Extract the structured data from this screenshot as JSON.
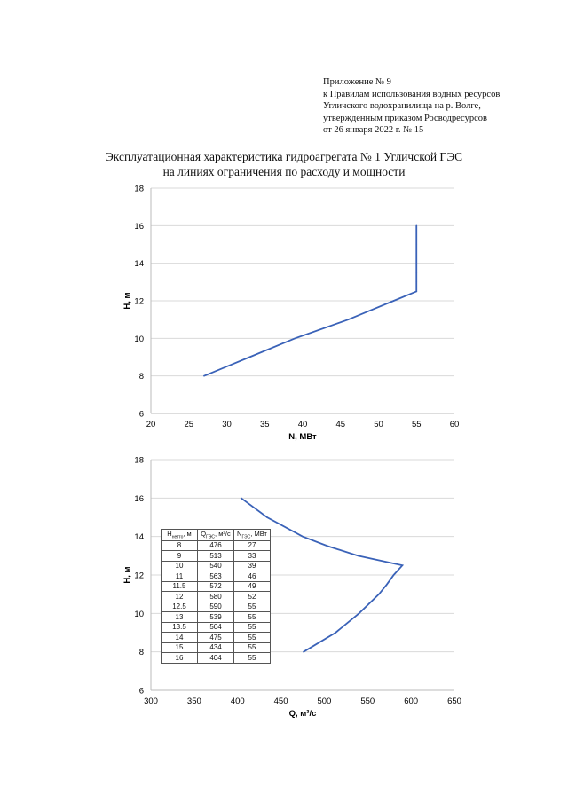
{
  "appendix": {
    "lines": [
      "Приложение № 9",
      "к Правилам использования водных ресурсов",
      "Угличского водохранилища на р. Волге,",
      "утвержденным приказом Росводресурсов",
      "от 26 января 2022 г. № 15"
    ]
  },
  "title": {
    "line1": "Эксплуатационная характеристика гидроагрегата № 1 Угличской ГЭС",
    "line2": "на линиях ограничения по расходу и мощности"
  },
  "table": {
    "headers": [
      {
        "main": "H",
        "sub": "нетто",
        "unit": ", м"
      },
      {
        "main": "Q",
        "sub": "ГЭС",
        "unit": ", м³/с"
      },
      {
        "main": "N",
        "sub": "ГЭС",
        "unit": ", МВт"
      }
    ],
    "rows": [
      [
        "8",
        "476",
        "27"
      ],
      [
        "9",
        "513",
        "33"
      ],
      [
        "10",
        "540",
        "39"
      ],
      [
        "11",
        "563",
        "46"
      ],
      [
        "11.5",
        "572",
        "49"
      ],
      [
        "12",
        "580",
        "52"
      ],
      [
        "12.5",
        "590",
        "55"
      ],
      [
        "13",
        "539",
        "55"
      ],
      [
        "13.5",
        "504",
        "55"
      ],
      [
        "14",
        "475",
        "55"
      ],
      [
        "15",
        "434",
        "55"
      ],
      [
        "16",
        "404",
        "55"
      ]
    ]
  },
  "colors": {
    "line": "#3a62b8",
    "grid": "#d9d9d9"
  },
  "chart_data": [
    {
      "type": "line",
      "title": "",
      "xlabel": "N, МВт",
      "ylabel": "H, м",
      "xlim": [
        20,
        60
      ],
      "ylim": [
        6,
        18
      ],
      "xticks": [
        20,
        25,
        30,
        35,
        40,
        45,
        50,
        55,
        60
      ],
      "yticks": [
        6,
        8,
        10,
        12,
        14,
        16,
        18
      ],
      "grid": "horizontal",
      "x": [
        27,
        33,
        39,
        46,
        49,
        52,
        55,
        55,
        55,
        55,
        55,
        55
      ],
      "y": [
        8,
        9,
        10,
        11,
        11.5,
        12,
        12.5,
        13,
        13.5,
        14,
        15,
        16
      ]
    },
    {
      "type": "line",
      "title": "",
      "xlabel": "Q, м³/с",
      "ylabel": "H, м",
      "xlim": [
        300,
        650
      ],
      "ylim": [
        6,
        18
      ],
      "xticks": [
        300,
        350,
        400,
        450,
        500,
        550,
        600,
        650
      ],
      "yticks": [
        6,
        8,
        10,
        12,
        14,
        16,
        18
      ],
      "grid": "horizontal",
      "x": [
        476,
        513,
        540,
        563,
        572,
        580,
        590,
        539,
        504,
        475,
        434,
        404
      ],
      "y": [
        8,
        9,
        10,
        11,
        11.5,
        12,
        12.5,
        13,
        13.5,
        14,
        15,
        16
      ]
    }
  ]
}
